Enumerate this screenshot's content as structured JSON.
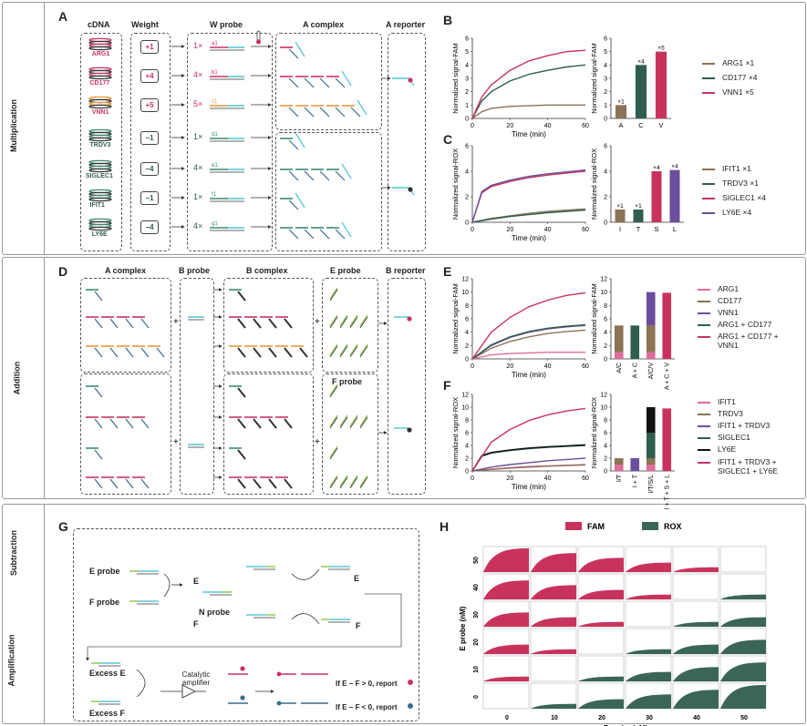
{
  "sections": {
    "multiplication": "Multiplication",
    "addition": "Addition",
    "subtraction": "Subtraction",
    "amplification": "Amplification"
  },
  "panel_labels": {
    "A": "A",
    "B": "B",
    "C": "C",
    "D": "D",
    "E": "E",
    "F": "F",
    "G": "G",
    "H": "H"
  },
  "panelA": {
    "headers": {
      "cdna": "cDNA",
      "weight": "Weight",
      "w_probe": "W probe",
      "a_complex": "A complex",
      "a_reporter": "A reporter"
    },
    "genes": [
      {
        "name": "ARG1",
        "weight": "+1",
        "mult": "1×",
        "color": "#c8335e"
      },
      {
        "name": "CD177",
        "weight": "+4",
        "mult": "4×",
        "color": "#c8335e"
      },
      {
        "name": "VNN1",
        "weight": "+5",
        "mult": "5×",
        "color": "#c8335e"
      },
      {
        "name": "TRDV3",
        "weight": "−1",
        "mult": "1×",
        "color": "#2f5e4e"
      },
      {
        "name": "SIGLEC1",
        "weight": "−4",
        "mult": "4×",
        "color": "#2f5e4e"
      },
      {
        "name": "IFIT1",
        "weight": "−1",
        "mult": "1×",
        "color": "#2f5e4e"
      },
      {
        "name": "LY6E",
        "weight": "−4",
        "mult": "4×",
        "color": "#2f5e4e"
      }
    ],
    "probe_labels": [
      "a1",
      "b1",
      "c1",
      "d1",
      "e1",
      "f1",
      "g1"
    ]
  },
  "panelD": {
    "headers": {
      "a_complex": "A complex",
      "b_probe": "B probe",
      "b_complex": "B complex",
      "e_probe": "E probe",
      "f_probe": "F probe",
      "b_reporter": "B reporter"
    }
  },
  "panelG": {
    "e_probe": "E probe",
    "f_probe": "F probe",
    "n_probe": "N probe",
    "excess_e": "Excess E",
    "excess_f": "Excess F",
    "catalytic": "Catalytic amplifier",
    "report_pos": "If E − F > 0, report",
    "report_neg": "If E − F < 0, report",
    "E": "E",
    "F": "F"
  },
  "chart_data": [
    {
      "id": "B-line",
      "type": "line",
      "xlabel": "Time (min)",
      "ylabel": "Normalized signal-FAM",
      "xlim": [
        0,
        60
      ],
      "ylim": [
        0,
        6
      ],
      "xticks": [
        0,
        20,
        40,
        60
      ],
      "yticks": [
        0,
        1,
        2,
        3,
        4,
        5,
        6
      ],
      "series": [
        {
          "name": "ARG1 ×1",
          "color": "#8b7355",
          "x": [
            0,
            5,
            10,
            20,
            30,
            40,
            50,
            60
          ],
          "y": [
            0,
            0.5,
            0.75,
            0.9,
            0.95,
            1.0,
            1.0,
            1.0
          ]
        },
        {
          "name": "CD177 ×4",
          "color": "#2f5e4e",
          "x": [
            0,
            5,
            10,
            20,
            30,
            40,
            50,
            60
          ],
          "y": [
            0,
            1.3,
            2.0,
            2.8,
            3.3,
            3.6,
            3.85,
            4.0
          ]
        },
        {
          "name": "VNN1 ×5",
          "color": "#c8335e",
          "x": [
            0,
            5,
            10,
            20,
            30,
            40,
            50,
            60
          ],
          "y": [
            0,
            1.6,
            2.5,
            3.6,
            4.3,
            4.7,
            5.0,
            5.1
          ]
        }
      ]
    },
    {
      "id": "B-bar",
      "type": "bar",
      "ylabel": "Normalized signal-FAM",
      "ylim": [
        0,
        6
      ],
      "yticks": [
        0,
        1,
        2,
        3,
        4,
        5,
        6
      ],
      "categories": [
        "A",
        "C",
        "V"
      ],
      "values": [
        1,
        4,
        5
      ],
      "colors": [
        "#8b7355",
        "#2f5e4e",
        "#c8335e"
      ],
      "labels": [
        "×1",
        "×4",
        "×5"
      ]
    },
    {
      "id": "C-line",
      "type": "line",
      "xlabel": "Time (min)",
      "ylabel": "Normalized signal-ROX",
      "xlim": [
        0,
        60
      ],
      "ylim": [
        0,
        6
      ],
      "xticks": [
        0,
        20,
        40,
        60
      ],
      "yticks": [
        0,
        2,
        4,
        6
      ],
      "series": [
        {
          "name": "IFIT1 ×1",
          "color": "#8b7355",
          "x": [
            0,
            10,
            20,
            30,
            40,
            50,
            60
          ],
          "y": [
            0,
            0.3,
            0.5,
            0.7,
            0.85,
            0.95,
            1.05
          ]
        },
        {
          "name": "TRDV3 ×1",
          "color": "#2f5e4e",
          "x": [
            0,
            10,
            20,
            30,
            40,
            50,
            60
          ],
          "y": [
            0,
            0.25,
            0.45,
            0.6,
            0.75,
            0.85,
            0.95
          ]
        },
        {
          "name": "SIGLEC1 ×4",
          "color": "#c8335e",
          "x": [
            0,
            5,
            10,
            20,
            30,
            40,
            50,
            60
          ],
          "y": [
            0,
            2.3,
            2.8,
            3.2,
            3.5,
            3.7,
            3.85,
            4.0
          ]
        },
        {
          "name": "LY6E ×4",
          "color": "#6b4e9b",
          "x": [
            0,
            5,
            10,
            20,
            30,
            40,
            50,
            60
          ],
          "y": [
            0,
            2.4,
            2.9,
            3.3,
            3.6,
            3.8,
            3.95,
            4.1
          ]
        }
      ]
    },
    {
      "id": "C-bar",
      "type": "bar",
      "ylabel": "Normalized signal-ROX",
      "ylim": [
        0,
        6
      ],
      "yticks": [
        0,
        2,
        4,
        6
      ],
      "categories": [
        "I",
        "T",
        "S",
        "L"
      ],
      "values": [
        1,
        1,
        4,
        4.1
      ],
      "colors": [
        "#8b7355",
        "#2f5e4e",
        "#c8335e",
        "#6b4e9b"
      ],
      "labels": [
        "×1",
        "×1",
        "×4",
        "×4"
      ]
    },
    {
      "id": "E-line",
      "type": "line",
      "xlabel": "Time (min)",
      "ylabel": "Normalized signal-FAM",
      "xlim": [
        0,
        60
      ],
      "ylim": [
        0,
        12
      ],
      "xticks": [
        0,
        20,
        40,
        60
      ],
      "yticks": [
        0,
        2,
        4,
        6,
        8,
        10,
        12
      ],
      "series": [
        {
          "name": "ARG1",
          "color": "#e06c9f",
          "x": [
            0,
            10,
            20,
            30,
            40,
            50,
            60
          ],
          "y": [
            0,
            0.6,
            0.8,
            0.9,
            1.0,
            1.0,
            1.0
          ]
        },
        {
          "name": "CD177",
          "color": "#8b7355",
          "x": [
            0,
            10,
            20,
            30,
            40,
            50,
            60
          ],
          "y": [
            0,
            1.6,
            2.6,
            3.3,
            3.8,
            4.1,
            4.3
          ]
        },
        {
          "name": "VNN1",
          "color": "#6b4e9b",
          "x": [
            0,
            10,
            20,
            30,
            40,
            50,
            60
          ],
          "y": [
            0,
            2.0,
            3.2,
            4.0,
            4.5,
            4.8,
            5.0
          ]
        },
        {
          "name": "ARG1 + CD177",
          "color": "#2f5e4e",
          "x": [
            0,
            10,
            20,
            30,
            40,
            50,
            60
          ],
          "y": [
            0,
            2.1,
            3.3,
            4.1,
            4.6,
            4.9,
            5.1
          ]
        },
        {
          "name": "ARG1 + CD177 + VNN1",
          "color": "#c8335e",
          "x": [
            0,
            10,
            20,
            30,
            40,
            50,
            60
          ],
          "y": [
            0,
            4.0,
            6.2,
            7.8,
            8.8,
            9.5,
            9.9
          ]
        }
      ]
    },
    {
      "id": "E-bar",
      "type": "bar",
      "ylabel": "Normalized signal-FAM",
      "ylim": [
        0,
        12
      ],
      "yticks": [
        0,
        2,
        4,
        6,
        8,
        10,
        12
      ],
      "categories": [
        "A/C",
        "A + C",
        "A/C/V",
        "A + C + V"
      ],
      "stacks": [
        [
          {
            "v": 1,
            "c": "#e06c9f"
          },
          {
            "v": 4,
            "c": "#8b7355"
          }
        ],
        [
          {
            "v": 5,
            "c": "#2f5e4e"
          }
        ],
        [
          {
            "v": 1,
            "c": "#e06c9f"
          },
          {
            "v": 4,
            "c": "#8b7355"
          },
          {
            "v": 5,
            "c": "#6b4e9b"
          }
        ],
        [
          {
            "v": 9.9,
            "c": "#c8335e"
          }
        ]
      ]
    },
    {
      "id": "F-line",
      "type": "line",
      "xlabel": "Time (min)",
      "ylabel": "Normalized signal-ROX",
      "xlim": [
        0,
        60
      ],
      "ylim": [
        0,
        12
      ],
      "xticks": [
        0,
        20,
        40,
        60
      ],
      "yticks": [
        0,
        2,
        4,
        6,
        8,
        10,
        12
      ],
      "series": [
        {
          "name": "IFIT1",
          "color": "#e06c9f",
          "x": [
            0,
            10,
            20,
            30,
            40,
            50,
            60
          ],
          "y": [
            0,
            0.3,
            0.5,
            0.7,
            0.8,
            0.9,
            1.0
          ]
        },
        {
          "name": "TRDV3",
          "color": "#8b7355",
          "x": [
            0,
            10,
            20,
            30,
            40,
            50,
            60
          ],
          "y": [
            0,
            0.25,
            0.45,
            0.6,
            0.75,
            0.85,
            0.95
          ]
        },
        {
          "name": "IFIT1 + TRDV3",
          "color": "#6b4e9b",
          "x": [
            0,
            10,
            20,
            30,
            40,
            50,
            60
          ],
          "y": [
            0,
            0.6,
            1.0,
            1.3,
            1.6,
            1.8,
            2.0
          ]
        },
        {
          "name": "SIGLEC1",
          "color": "#2f5e4e",
          "x": [
            0,
            5,
            10,
            20,
            30,
            40,
            50,
            60
          ],
          "y": [
            0,
            2.3,
            2.8,
            3.2,
            3.5,
            3.7,
            3.85,
            4.0
          ]
        },
        {
          "name": "LY6E",
          "color": "#111111",
          "x": [
            0,
            5,
            10,
            20,
            30,
            40,
            50,
            60
          ],
          "y": [
            0,
            2.4,
            2.9,
            3.3,
            3.6,
            3.8,
            3.95,
            4.1
          ]
        },
        {
          "name": "IFIT1 + TRDV3 + SIGLEC1 + LY6E",
          "color": "#c8335e",
          "x": [
            0,
            10,
            20,
            30,
            40,
            50,
            60
          ],
          "y": [
            0,
            4.5,
            6.5,
            7.9,
            8.8,
            9.4,
            9.8
          ]
        }
      ]
    },
    {
      "id": "F-bar",
      "type": "bar",
      "ylabel": "Normalized signal-ROX",
      "ylim": [
        0,
        12
      ],
      "yticks": [
        0,
        2,
        4,
        6,
        8,
        10,
        12
      ],
      "categories": [
        "I/T",
        "I + T",
        "I/T/S/L",
        "I + T + S + L"
      ],
      "stacks": [
        [
          {
            "v": 1,
            "c": "#e06c9f"
          },
          {
            "v": 1,
            "c": "#8b7355"
          }
        ],
        [
          {
            "v": 2,
            "c": "#6b4e9b"
          }
        ],
        [
          {
            "v": 1,
            "c": "#e06c9f"
          },
          {
            "v": 1,
            "c": "#8b7355"
          },
          {
            "v": 4,
            "c": "#2f5e4e"
          },
          {
            "v": 4,
            "c": "#111111"
          }
        ],
        [
          {
            "v": 9.8,
            "c": "#c8335e"
          }
        ]
      ]
    },
    {
      "id": "H-grid",
      "type": "area",
      "title": "",
      "legend": [
        "FAM",
        "ROX"
      ],
      "legend_colors": [
        "#c8335e",
        "#3b6656"
      ],
      "xlabel": "F probe (nM)",
      "ylabel": "E probe (nM)",
      "x": [
        0,
        10,
        20,
        30,
        40,
        50
      ],
      "y": [
        50,
        40,
        30,
        20,
        10,
        0
      ]
    }
  ]
}
